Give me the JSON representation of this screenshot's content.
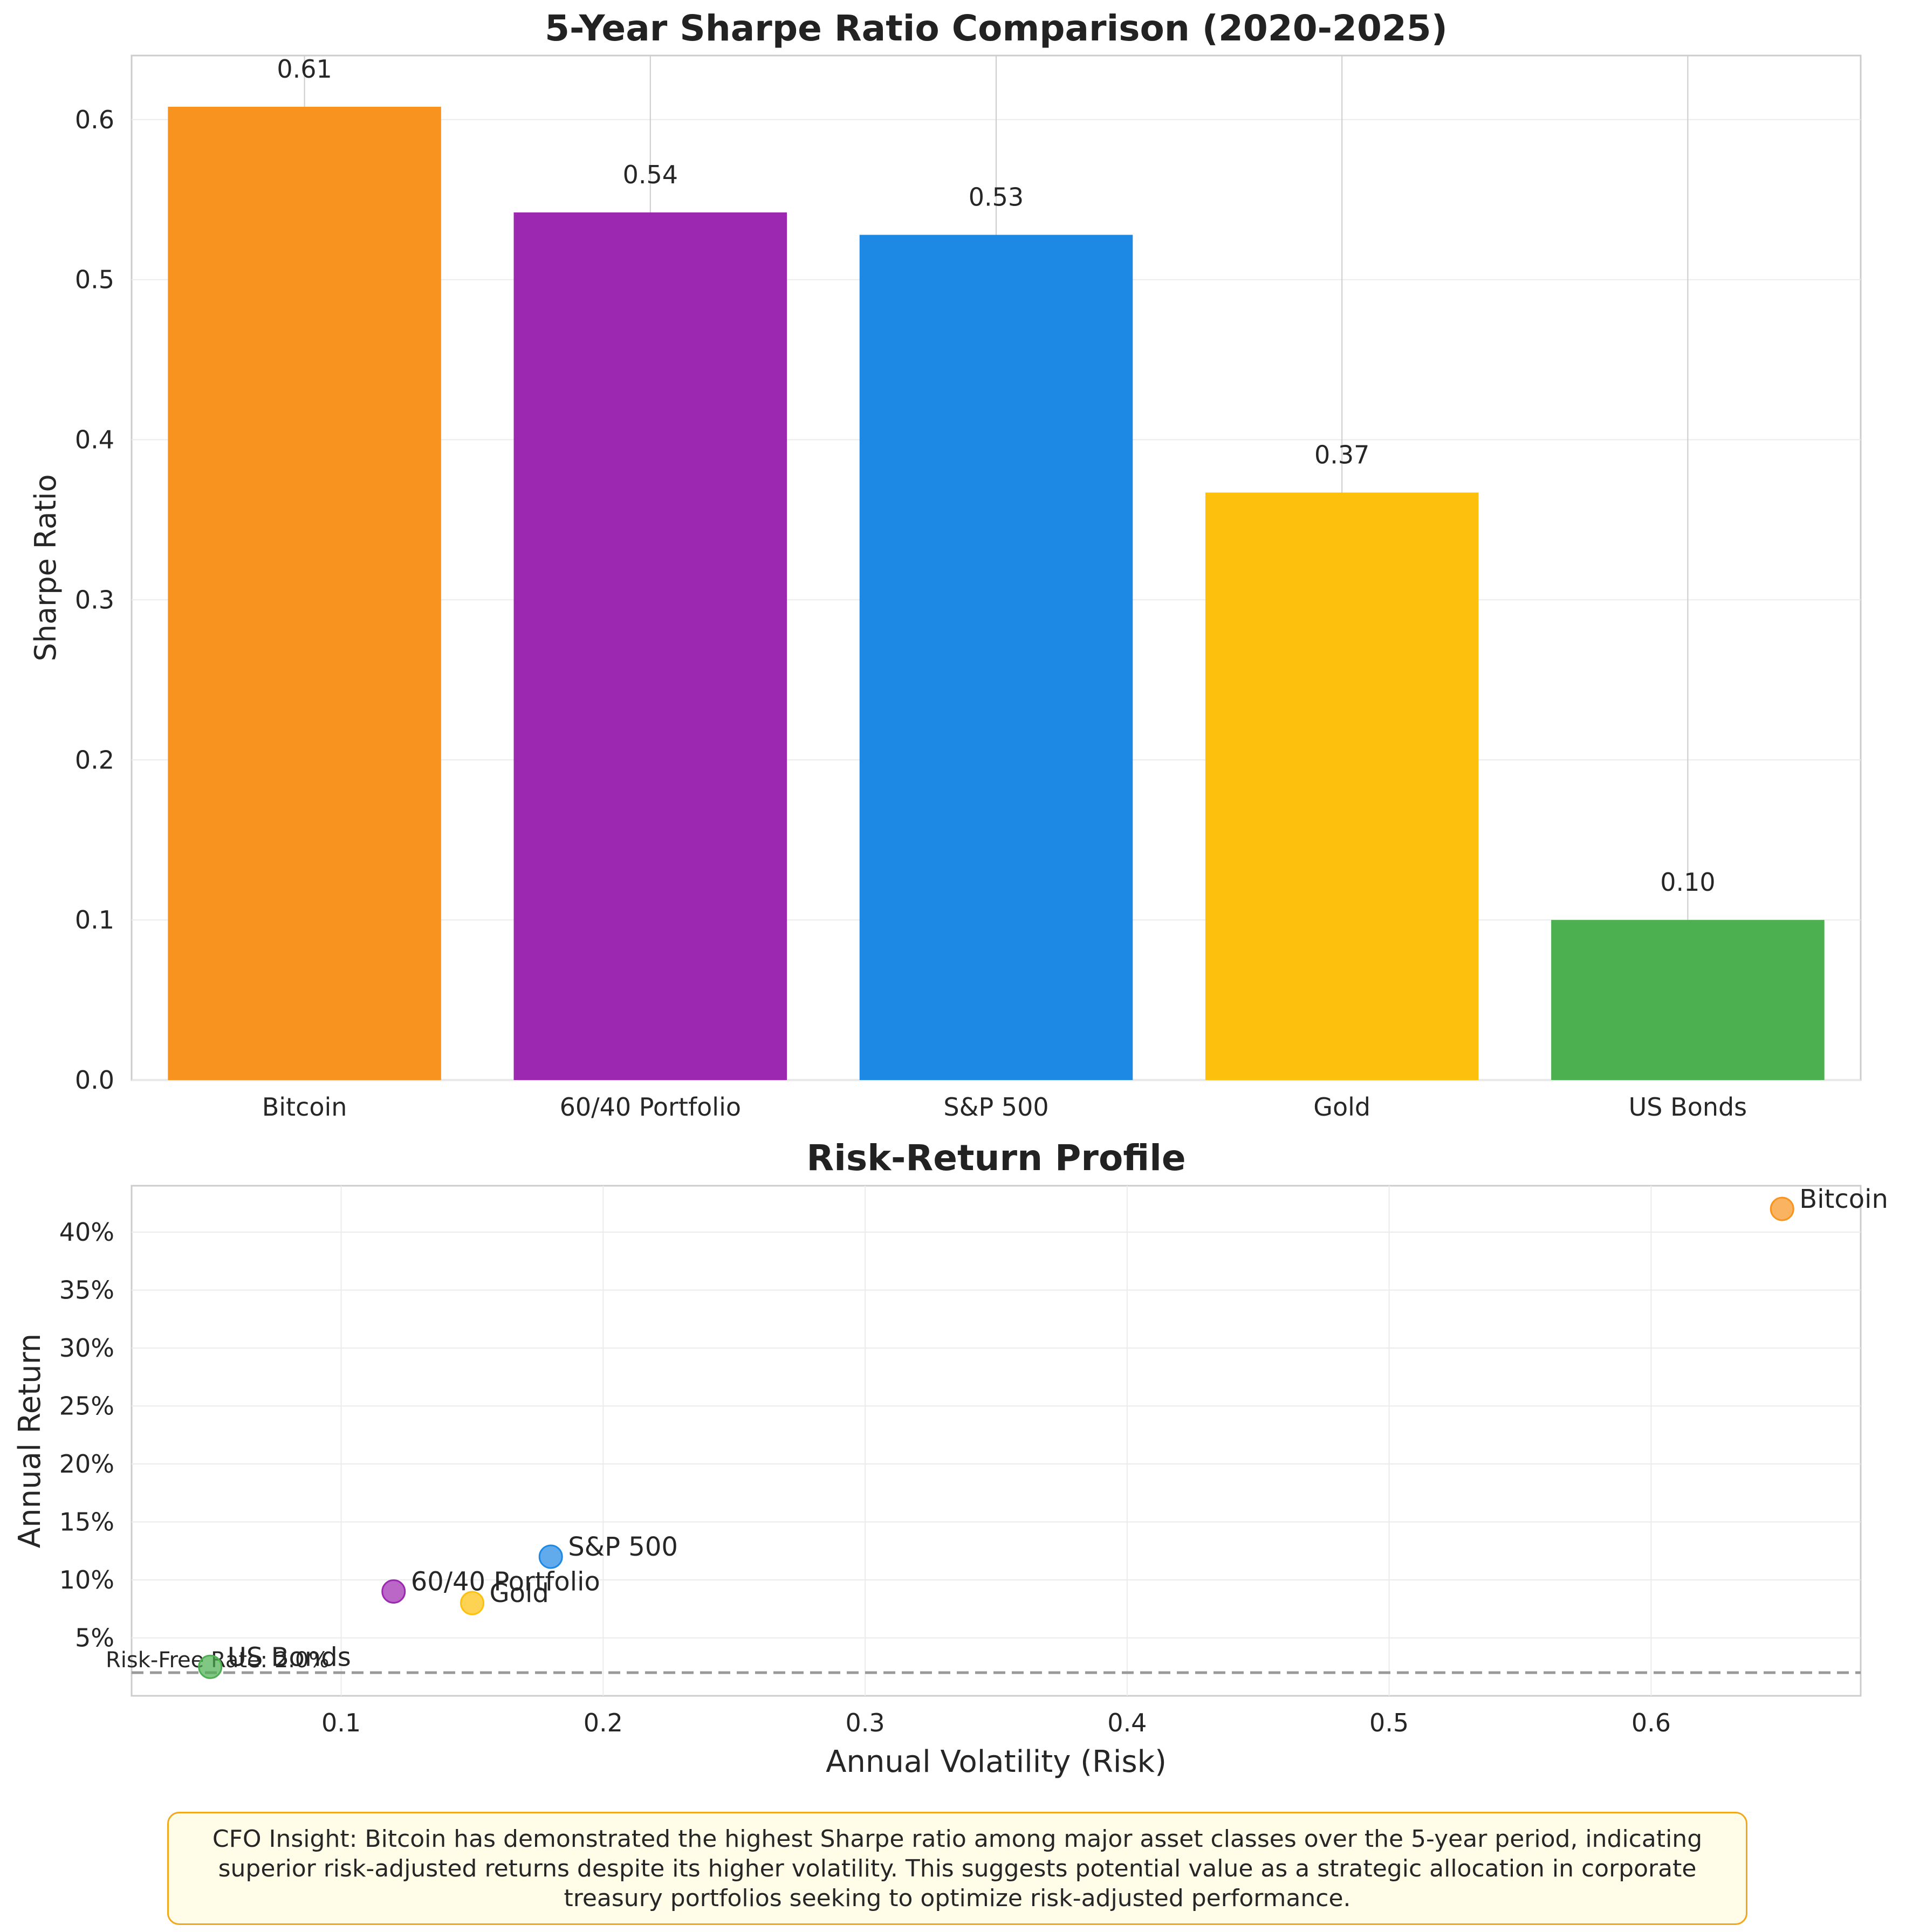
{
  "chart_data": [
    {
      "type": "bar",
      "title": "5-Year Sharpe Ratio Comparison (2020-2025)",
      "xlabel": "",
      "ylabel": "Sharpe Ratio",
      "categories": [
        "Bitcoin",
        "60/40 Portfolio",
        "S&P 500",
        "Gold",
        "US Bonds"
      ],
      "values": [
        0.608,
        0.542,
        0.528,
        0.367,
        0.1
      ],
      "value_labels": [
        "0.61",
        "0.54",
        "0.53",
        "0.37",
        "0.10"
      ],
      "colors": [
        "#f7931e",
        "#9c27b0",
        "#1e88e5",
        "#fdc00c",
        "#4caf50"
      ],
      "ylim": [
        0,
        0.64
      ],
      "yticks": [
        0.0,
        0.1,
        0.2,
        0.3,
        0.4,
        0.5,
        0.6
      ],
      "ytick_labels": [
        "0.0",
        "0.1",
        "0.2",
        "0.3",
        "0.4",
        "0.5",
        "0.6"
      ],
      "grid": true
    },
    {
      "type": "scatter",
      "title": "Risk-Return Profile",
      "xlabel": "Annual Volatility (Risk)",
      "ylabel": "Annual Return",
      "points": [
        {
          "label": "Bitcoin",
          "x": 0.65,
          "y": 0.42,
          "color": "#f7931e"
        },
        {
          "label": "60/40 Portfolio",
          "x": 0.12,
          "y": 0.09,
          "color": "#9c27b0"
        },
        {
          "label": "S&P 500",
          "x": 0.18,
          "y": 0.12,
          "color": "#1e88e5"
        },
        {
          "label": "Gold",
          "x": 0.15,
          "y": 0.08,
          "color": "#fdc00c"
        },
        {
          "label": "US Bonds",
          "x": 0.05,
          "y": 0.025,
          "color": "#4caf50"
        }
      ],
      "xlim": [
        0.02,
        0.68
      ],
      "ylim": [
        0.0,
        0.44
      ],
      "xticks": [
        0.1,
        0.2,
        0.3,
        0.4,
        0.5,
        0.6
      ],
      "xtick_labels": [
        "0.1",
        "0.2",
        "0.3",
        "0.4",
        "0.5",
        "0.6"
      ],
      "yticks": [
        0.05,
        0.1,
        0.15,
        0.2,
        0.25,
        0.3,
        0.35,
        0.4
      ],
      "ytick_labels": [
        "5%",
        "10%",
        "15%",
        "20%",
        "25%",
        "30%",
        "35%",
        "40%"
      ],
      "reference_line": {
        "y": 0.02,
        "label": "Risk-Free Rate: 2.0%",
        "style": "dashed",
        "color": "#999999"
      },
      "grid": true
    }
  ],
  "insight": {
    "text": "CFO Insight: Bitcoin has demonstrated the highest Sharpe ratio among major asset classes over the 5-year period, indicating superior risk-adjusted returns despite its higher volatility. This suggests potential value as a strategic allocation in corporate treasury portfolios seeking to optimize risk-adjusted performance."
  }
}
